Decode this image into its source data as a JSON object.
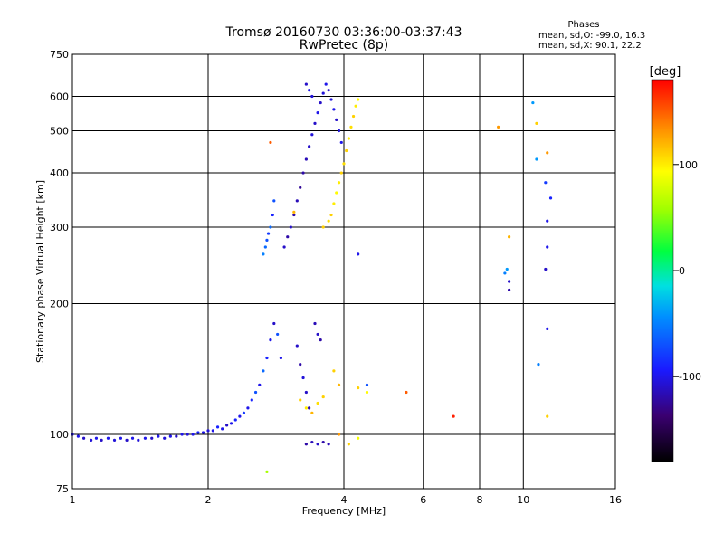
{
  "chart_data": {
    "type": "scatter",
    "title": "Tromsø 20160730 03:36:00-03:37:43",
    "subtitle": "RwPretec (8p)",
    "xlabel": "Frequency [MHz]",
    "ylabel": "Stationary phase Virtual Height [km]",
    "x_scale": "log",
    "y_scale": "log",
    "xlim": [
      1,
      16
    ],
    "ylim": [
      75,
      750
    ],
    "x_ticks": [
      "1",
      "2",
      "4",
      "6",
      "8",
      "10",
      "16"
    ],
    "x_tick_values": [
      1,
      2,
      4,
      6,
      8,
      10,
      16
    ],
    "y_ticks": [
      "75",
      "100",
      "200",
      "300",
      "400",
      "500",
      "600",
      "750"
    ],
    "y_tick_values": [
      75,
      100,
      200,
      300,
      400,
      500,
      600,
      750
    ],
    "grid": true,
    "phase_legend": {
      "title": "Phases",
      "line1": "mean, sd,O: -99.0, 16.3",
      "line2": "mean, sd,X:  90.1, 22.2"
    },
    "colorbar": {
      "label": "[deg]",
      "range": [
        -180,
        180
      ],
      "ticks": [
        "100",
        "0",
        "-100"
      ],
      "tick_values": [
        100,
        0,
        -100
      ]
    },
    "series": [
      {
        "mode": "O",
        "points": [
          [
            1.0,
            100,
            -100
          ],
          [
            1.03,
            99,
            -100
          ],
          [
            1.06,
            98,
            -110
          ],
          [
            1.1,
            97,
            -105
          ],
          [
            1.13,
            98,
            -100
          ],
          [
            1.16,
            97,
            -110
          ],
          [
            1.2,
            98,
            -100
          ],
          [
            1.24,
            97,
            -105
          ],
          [
            1.28,
            98,
            -100
          ],
          [
            1.32,
            97,
            -110
          ],
          [
            1.36,
            98,
            -100
          ],
          [
            1.4,
            97,
            -105
          ],
          [
            1.45,
            98,
            -100
          ],
          [
            1.5,
            98,
            -110
          ],
          [
            1.55,
            99,
            -100
          ],
          [
            1.6,
            98,
            -105
          ],
          [
            1.65,
            99,
            -100
          ],
          [
            1.7,
            99,
            -110
          ],
          [
            1.75,
            100,
            -100
          ],
          [
            1.8,
            100,
            -105
          ],
          [
            1.85,
            100,
            -100
          ],
          [
            1.9,
            101,
            -90
          ],
          [
            1.95,
            101,
            -100
          ],
          [
            2.0,
            102,
            -105
          ],
          [
            2.05,
            102,
            -100
          ],
          [
            2.1,
            104,
            -90
          ],
          [
            2.15,
            103,
            -100
          ],
          [
            2.2,
            105,
            -110
          ],
          [
            2.25,
            106,
            -100
          ],
          [
            2.3,
            108,
            -90
          ],
          [
            2.35,
            110,
            -100
          ],
          [
            2.4,
            112,
            -80
          ],
          [
            2.45,
            115,
            -100
          ],
          [
            2.5,
            120,
            -90
          ],
          [
            2.55,
            125,
            -70
          ],
          [
            2.6,
            130,
            -100
          ],
          [
            2.65,
            140,
            -60
          ],
          [
            2.7,
            150,
            -90
          ],
          [
            2.75,
            165,
            -100
          ],
          [
            2.8,
            180,
            -110
          ],
          [
            2.85,
            170,
            -70
          ],
          [
            2.9,
            150,
            -100
          ],
          [
            2.65,
            260,
            -50
          ],
          [
            2.68,
            270,
            -60
          ],
          [
            2.7,
            280,
            -70
          ],
          [
            2.72,
            290,
            -80
          ],
          [
            2.75,
            300,
            -60
          ],
          [
            2.78,
            320,
            -90
          ],
          [
            2.8,
            345,
            -70
          ],
          [
            2.95,
            270,
            -110
          ],
          [
            3.0,
            285,
            -120
          ],
          [
            3.05,
            300,
            -110
          ],
          [
            3.1,
            320,
            -120
          ],
          [
            3.15,
            345,
            -115
          ],
          [
            3.2,
            370,
            -125
          ],
          [
            3.25,
            400,
            -120
          ],
          [
            3.3,
            430,
            -115
          ],
          [
            3.35,
            460,
            -110
          ],
          [
            3.4,
            490,
            -105
          ],
          [
            3.45,
            520,
            -110
          ],
          [
            3.5,
            550,
            -100
          ],
          [
            3.55,
            580,
            -110
          ],
          [
            3.6,
            610,
            -105
          ],
          [
            3.65,
            640,
            -100
          ],
          [
            3.7,
            620,
            -110
          ],
          [
            3.75,
            590,
            -105
          ],
          [
            3.8,
            560,
            -100
          ],
          [
            3.85,
            530,
            -110
          ],
          [
            3.9,
            500,
            -105
          ],
          [
            3.95,
            470,
            -100
          ],
          [
            3.3,
            640,
            -110
          ],
          [
            3.35,
            620,
            -100
          ],
          [
            3.4,
            600,
            -105
          ],
          [
            3.15,
            160,
            -110
          ],
          [
            3.2,
            145,
            -120
          ],
          [
            3.25,
            135,
            -105
          ],
          [
            3.3,
            125,
            -110
          ],
          [
            3.35,
            115,
            -120
          ],
          [
            3.45,
            180,
            -115
          ],
          [
            3.5,
            170,
            -110
          ],
          [
            3.55,
            165,
            -120
          ],
          [
            3.3,
            95,
            -120
          ],
          [
            3.4,
            96,
            -115
          ],
          [
            3.5,
            95,
            -110
          ],
          [
            3.6,
            96,
            -120
          ],
          [
            3.7,
            95,
            -115
          ],
          [
            10.5,
            580,
            -40
          ],
          [
            10.7,
            430,
            -40
          ],
          [
            11.2,
            380,
            -80
          ],
          [
            11.5,
            350,
            -90
          ],
          [
            11.3,
            310,
            -100
          ],
          [
            11.3,
            270,
            -100
          ],
          [
            11.2,
            240,
            -110
          ],
          [
            11.3,
            175,
            -100
          ],
          [
            10.8,
            145,
            -50
          ],
          [
            9.3,
            215,
            -120
          ],
          [
            9.3,
            225,
            -110
          ],
          [
            9.1,
            235,
            -50
          ],
          [
            9.2,
            240,
            -40
          ],
          [
            4.3,
            260,
            -100
          ],
          [
            4.5,
            130,
            -70
          ]
        ]
      },
      {
        "mode": "X",
        "points": [
          [
            3.6,
            300,
            110
          ],
          [
            3.7,
            310,
            105
          ],
          [
            3.75,
            320,
            110
          ],
          [
            3.8,
            340,
            100
          ],
          [
            3.85,
            360,
            95
          ],
          [
            3.9,
            380,
            100
          ],
          [
            3.95,
            400,
            110
          ],
          [
            4.0,
            420,
            105
          ],
          [
            4.05,
            450,
            110
          ],
          [
            4.1,
            480,
            100
          ],
          [
            4.15,
            510,
            105
          ],
          [
            4.2,
            540,
            110
          ],
          [
            4.25,
            570,
            100
          ],
          [
            4.3,
            590,
            95
          ],
          [
            2.75,
            470,
            150
          ],
          [
            3.1,
            325,
            120
          ],
          [
            3.2,
            120,
            110
          ],
          [
            3.3,
            115,
            100
          ],
          [
            3.4,
            112,
            120
          ],
          [
            3.5,
            118,
            105
          ],
          [
            3.6,
            122,
            110
          ],
          [
            3.8,
            140,
            110
          ],
          [
            3.9,
            130,
            120
          ],
          [
            4.3,
            128,
            110
          ],
          [
            4.5,
            125,
            95
          ],
          [
            5.5,
            125,
            150
          ],
          [
            7.0,
            110,
            170
          ],
          [
            8.8,
            510,
            130
          ],
          [
            9.3,
            285,
            120
          ],
          [
            10.7,
            520,
            110
          ],
          [
            11.3,
            445,
            130
          ],
          [
            11.3,
            110,
            110
          ],
          [
            2.7,
            82,
            60
          ],
          [
            3.9,
            100,
            130
          ],
          [
            4.1,
            95,
            110
          ],
          [
            4.3,
            98,
            90
          ]
        ]
      }
    ]
  }
}
